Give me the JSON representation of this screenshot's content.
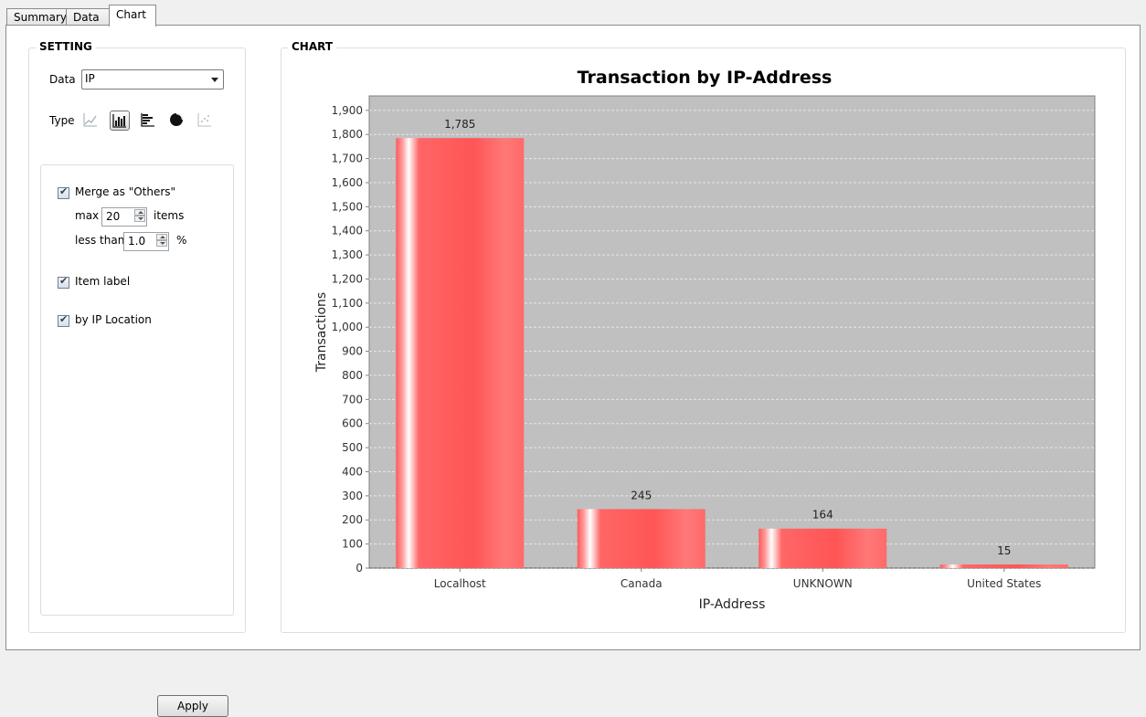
{
  "tabs": [
    {
      "label": "Summary",
      "active": false
    },
    {
      "label": "Data",
      "active": false
    },
    {
      "label": "Chart",
      "active": true
    }
  ],
  "setting": {
    "title": "SETTING",
    "data_label": "Data",
    "data_value": "IP",
    "type_label": "Type",
    "type_icons": [
      "line-chart-icon",
      "bar-chart-icon",
      "horizontal-bar-chart-icon",
      "pie-chart-icon",
      "scatter-chart-icon"
    ],
    "selected_type": "bar-chart-icon",
    "merge_label": "Merge as \"Others\"",
    "merge_checked": true,
    "max_label": "max",
    "max_value": "20",
    "items_label": "items",
    "less_than_label": "less than",
    "less_than_value": "1.0",
    "percent_label": "%",
    "item_label_label": "Item label",
    "item_label_checked": true,
    "by_ip_location_label": "by IP Location",
    "by_ip_location_checked": true,
    "apply_label": "Apply"
  },
  "chart_group_title": "CHART",
  "chart_data": {
    "type": "bar",
    "title": "Transaction by IP-Address",
    "xlabel": "IP-Address",
    "ylabel": "Transactions",
    "categories": [
      "Localhost",
      "Canada",
      "UNKNOWN",
      "United States"
    ],
    "values": [
      1785,
      245,
      164,
      15
    ],
    "value_labels": [
      "1,785",
      "245",
      "164",
      "15"
    ],
    "ylim": [
      0,
      1960
    ],
    "yticks": [
      0,
      100,
      200,
      300,
      400,
      500,
      600,
      700,
      800,
      900,
      1000,
      1100,
      1200,
      1300,
      1400,
      1500,
      1600,
      1700,
      1800,
      1900
    ],
    "ytick_labels": [
      "0",
      "100",
      "200",
      "300",
      "400",
      "500",
      "600",
      "700",
      "800",
      "900",
      "1,000",
      "1,100",
      "1,200",
      "1,300",
      "1,400",
      "1,500",
      "1,600",
      "1,700",
      "1,800",
      "1,900"
    ],
    "grid": true,
    "bar_color": "#ff5a5a",
    "plot_background": "#c0c0c0"
  }
}
